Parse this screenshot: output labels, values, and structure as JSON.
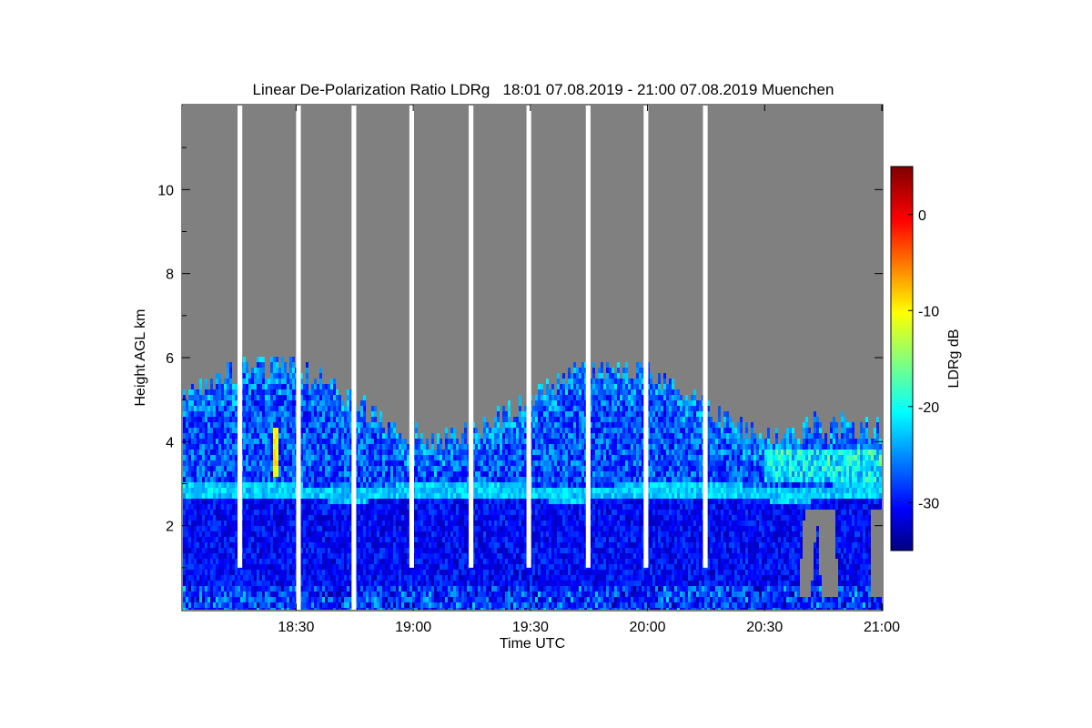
{
  "chart_data": {
    "type": "heatmap",
    "title": "Linear De-Polarization Ratio LDRg   18:01 07.08.2019 - 21:00 07.08.2019 Muenchen",
    "xlabel": "Time UTC",
    "ylabel": "Height AGL km",
    "xlim_minutes_utc": [
      1081,
      1260
    ],
    "ylim_km": [
      0,
      12
    ],
    "xticks": [
      {
        "minute": 1110,
        "label": "18:30"
      },
      {
        "minute": 1140,
        "label": "19:00"
      },
      {
        "minute": 1170,
        "label": "19:30"
      },
      {
        "minute": 1200,
        "label": "20:00"
      },
      {
        "minute": 1230,
        "label": "20:30"
      },
      {
        "minute": 1260,
        "label": "21:00"
      }
    ],
    "yticks": [
      {
        "value": 2,
        "label": "2"
      },
      {
        "value": 4,
        "label": "4"
      },
      {
        "value": 6,
        "label": "6"
      },
      {
        "value": 8,
        "label": "8"
      },
      {
        "value": 10,
        "label": "10"
      }
    ],
    "colorbar": {
      "label": "LDRg dB",
      "range_db": [
        -35,
        5
      ],
      "ticks": [
        {
          "value": 0,
          "label": "0"
        },
        {
          "value": -10,
          "label": "-10"
        },
        {
          "value": -20,
          "label": "-20"
        },
        {
          "value": -30,
          "label": "-30"
        }
      ],
      "colormap": "jet"
    },
    "no_signal_color": "#808080",
    "data_gaps_minutes": [
      {
        "start": 1095.0,
        "end": 1096.2,
        "from_km": 1.0
      },
      {
        "start": 1110.0,
        "end": 1111.2,
        "from_km": 0
      },
      {
        "start": 1124.2,
        "end": 1125.4,
        "from_km": 0
      },
      {
        "start": 1139.0,
        "end": 1140.2,
        "from_km": 1.0
      },
      {
        "start": 1154.2,
        "end": 1155.4,
        "from_km": 1.0
      },
      {
        "start": 1169.0,
        "end": 1170.2,
        "from_km": 1.0
      },
      {
        "start": 1184.2,
        "end": 1185.4,
        "from_km": 1.0
      },
      {
        "start": 1199.0,
        "end": 1200.2,
        "from_km": 1.0
      },
      {
        "start": 1214.2,
        "end": 1215.4,
        "from_km": 1.0
      }
    ],
    "features": [
      {
        "name": "cloud_top_boundary_km",
        "approx_range": [
          3.9,
          6.0
        ]
      },
      {
        "name": "depolarizing_layer",
        "height_km": 2.8,
        "ldr_db": -22
      },
      {
        "name": "lower_layer_mean",
        "height_km": [
          0,
          2.6
        ],
        "ldr_db": -30
      },
      {
        "name": "upper_cloud_mean",
        "height_km": [
          3,
          5.5
        ],
        "ldr_db": -27
      },
      {
        "name": "particles_near_1825",
        "minute": 1105,
        "height_km": [
          3.2,
          4.3
        ],
        "ldr_db": -10
      }
    ]
  }
}
